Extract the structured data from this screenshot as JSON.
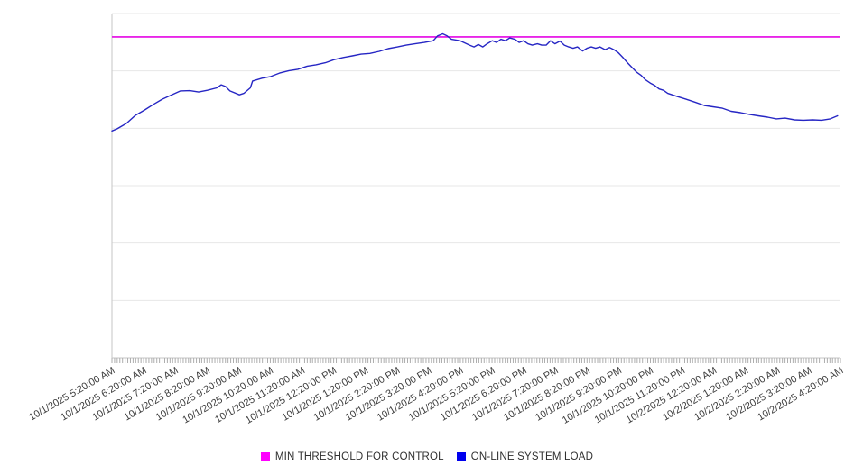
{
  "chart_data": {
    "type": "line",
    "title": "",
    "xlabel": "",
    "ylabel": "",
    "legend_position": "bottom-center",
    "grid": "horizontal",
    "x_axis": {
      "tick_labels": [
        "10/1/2025 5:20:00 AM",
        "10/1/2025 6:20:00 AM",
        "10/1/2025 7:20:00 AM",
        "10/1/2025 8:20:00 AM",
        "10/1/2025 9:20:00 AM",
        "10/1/2025 10:20:00 AM",
        "10/1/2025 11:20:00 AM",
        "10/1/2025 12:20:00 PM",
        "10/1/2025 1:20:00 PM",
        "10/1/2025 2:20:00 PM",
        "10/1/2025 3:20:00 PM",
        "10/1/2025 4:20:00 PM",
        "10/1/2025 5:20:00 PM",
        "10/1/2025 6:20:00 PM",
        "10/1/2025 7:20:00 PM",
        "10/1/2025 8:20:00 PM",
        "10/1/2025 9:20:00 PM",
        "10/1/2025 10:20:00 PM",
        "10/1/2025 11:20:00 PM",
        "10/2/2025 12:20:00 AM",
        "10/2/2025 1:20:00 AM",
        "10/2/2025 2:20:00 AM",
        "10/2/2025 3:20:00 AM",
        "10/2/2025 4:20:00 AM"
      ],
      "label_rotation_deg": -30,
      "minor_ticks_per_interval": 12
    },
    "y_axis": {
      "tick_labels_visible": false,
      "ylim": [
        0,
        100
      ],
      "gridline_divisions": 6
    },
    "series": [
      {
        "name": "MIN THRESHOLD FOR CONTROL",
        "type": "constant-threshold",
        "line_color": "#e405e4",
        "legend_color": "#ff00ff",
        "value": 93.2
      },
      {
        "name": "ON-LINE SYSTEM LOAD",
        "type": "line",
        "line_color": "#2626c4",
        "legend_color": "#0000ee",
        "points": [
          [
            0.0,
            65.9
          ],
          [
            0.007,
            66.5
          ],
          [
            0.02,
            68.1
          ],
          [
            0.032,
            70.4
          ],
          [
            0.045,
            72.0
          ],
          [
            0.057,
            73.6
          ],
          [
            0.069,
            75.1
          ],
          [
            0.082,
            76.4
          ],
          [
            0.094,
            77.5
          ],
          [
            0.107,
            77.6
          ],
          [
            0.119,
            77.2
          ],
          [
            0.131,
            77.7
          ],
          [
            0.144,
            78.4
          ],
          [
            0.15,
            79.3
          ],
          [
            0.156,
            78.8
          ],
          [
            0.162,
            77.5
          ],
          [
            0.175,
            76.4
          ],
          [
            0.181,
            76.8
          ],
          [
            0.19,
            78.4
          ],
          [
            0.193,
            80.4
          ],
          [
            0.206,
            81.2
          ],
          [
            0.218,
            81.7
          ],
          [
            0.23,
            82.7
          ],
          [
            0.243,
            83.4
          ],
          [
            0.255,
            83.8
          ],
          [
            0.268,
            84.7
          ],
          [
            0.28,
            85.1
          ],
          [
            0.293,
            85.7
          ],
          [
            0.305,
            86.6
          ],
          [
            0.317,
            87.2
          ],
          [
            0.33,
            87.7
          ],
          [
            0.342,
            88.2
          ],
          [
            0.354,
            88.4
          ],
          [
            0.367,
            89.0
          ],
          [
            0.379,
            89.8
          ],
          [
            0.392,
            90.3
          ],
          [
            0.404,
            90.8
          ],
          [
            0.416,
            91.2
          ],
          [
            0.429,
            91.6
          ],
          [
            0.441,
            92.1
          ],
          [
            0.447,
            93.5
          ],
          [
            0.454,
            94.1
          ],
          [
            0.46,
            93.5
          ],
          [
            0.466,
            92.5
          ],
          [
            0.478,
            92.1
          ],
          [
            0.491,
            90.8
          ],
          [
            0.497,
            90.3
          ],
          [
            0.503,
            91.0
          ],
          [
            0.509,
            90.3
          ],
          [
            0.515,
            91.2
          ],
          [
            0.522,
            92.1
          ],
          [
            0.528,
            91.6
          ],
          [
            0.534,
            92.5
          ],
          [
            0.54,
            92.1
          ],
          [
            0.546,
            92.9
          ],
          [
            0.553,
            92.5
          ],
          [
            0.559,
            91.6
          ],
          [
            0.565,
            92.1
          ],
          [
            0.571,
            91.2
          ],
          [
            0.577,
            90.8
          ],
          [
            0.584,
            91.2
          ],
          [
            0.59,
            90.8
          ],
          [
            0.596,
            90.8
          ],
          [
            0.602,
            92.1
          ],
          [
            0.608,
            91.2
          ],
          [
            0.615,
            92.0
          ],
          [
            0.621,
            90.8
          ],
          [
            0.627,
            90.3
          ],
          [
            0.633,
            89.9
          ],
          [
            0.639,
            90.3
          ],
          [
            0.646,
            89.1
          ],
          [
            0.652,
            89.9
          ],
          [
            0.658,
            90.3
          ],
          [
            0.664,
            89.9
          ],
          [
            0.67,
            90.3
          ],
          [
            0.677,
            89.5
          ],
          [
            0.683,
            90.1
          ],
          [
            0.689,
            89.5
          ],
          [
            0.695,
            88.6
          ],
          [
            0.701,
            87.3
          ],
          [
            0.708,
            85.6
          ],
          [
            0.714,
            84.3
          ],
          [
            0.72,
            83.0
          ],
          [
            0.726,
            82.1
          ],
          [
            0.732,
            80.8
          ],
          [
            0.739,
            79.8
          ],
          [
            0.745,
            79.1
          ],
          [
            0.751,
            78.1
          ],
          [
            0.757,
            77.7
          ],
          [
            0.763,
            76.8
          ],
          [
            0.776,
            75.9
          ],
          [
            0.788,
            75.1
          ],
          [
            0.801,
            74.2
          ],
          [
            0.813,
            73.3
          ],
          [
            0.825,
            72.9
          ],
          [
            0.838,
            72.5
          ],
          [
            0.85,
            71.6
          ],
          [
            0.863,
            71.2
          ],
          [
            0.875,
            70.7
          ],
          [
            0.887,
            70.3
          ],
          [
            0.9,
            69.9
          ],
          [
            0.912,
            69.4
          ],
          [
            0.924,
            69.6
          ],
          [
            0.937,
            69.1
          ],
          [
            0.949,
            69.0
          ],
          [
            0.962,
            69.1
          ],
          [
            0.974,
            69.0
          ],
          [
            0.986,
            69.4
          ],
          [
            0.996,
            70.3
          ]
        ]
      }
    ]
  },
  "colors": {
    "gridline": "#e7e7e7",
    "axis_line": "#c6c6c6",
    "tick": "#adadad",
    "label_text": "#3d3d3d"
  }
}
